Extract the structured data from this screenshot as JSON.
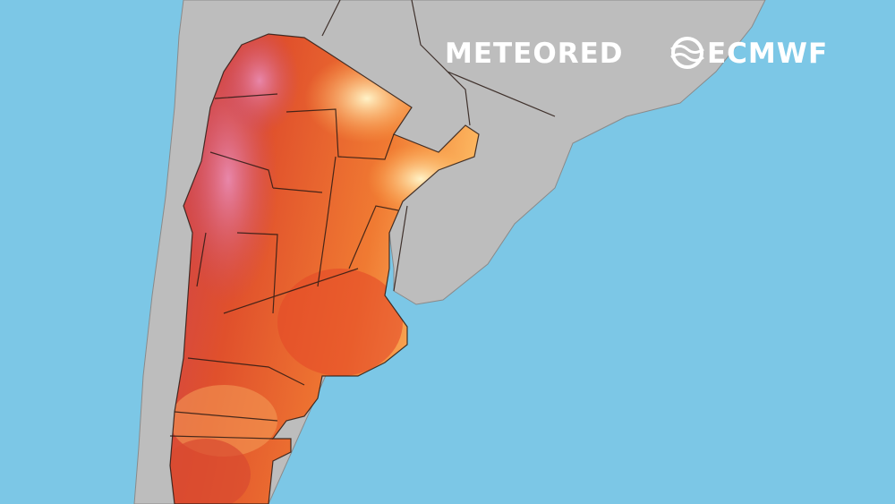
{
  "logos": [
    "METEORED",
    "ECMWF"
  ]
}
